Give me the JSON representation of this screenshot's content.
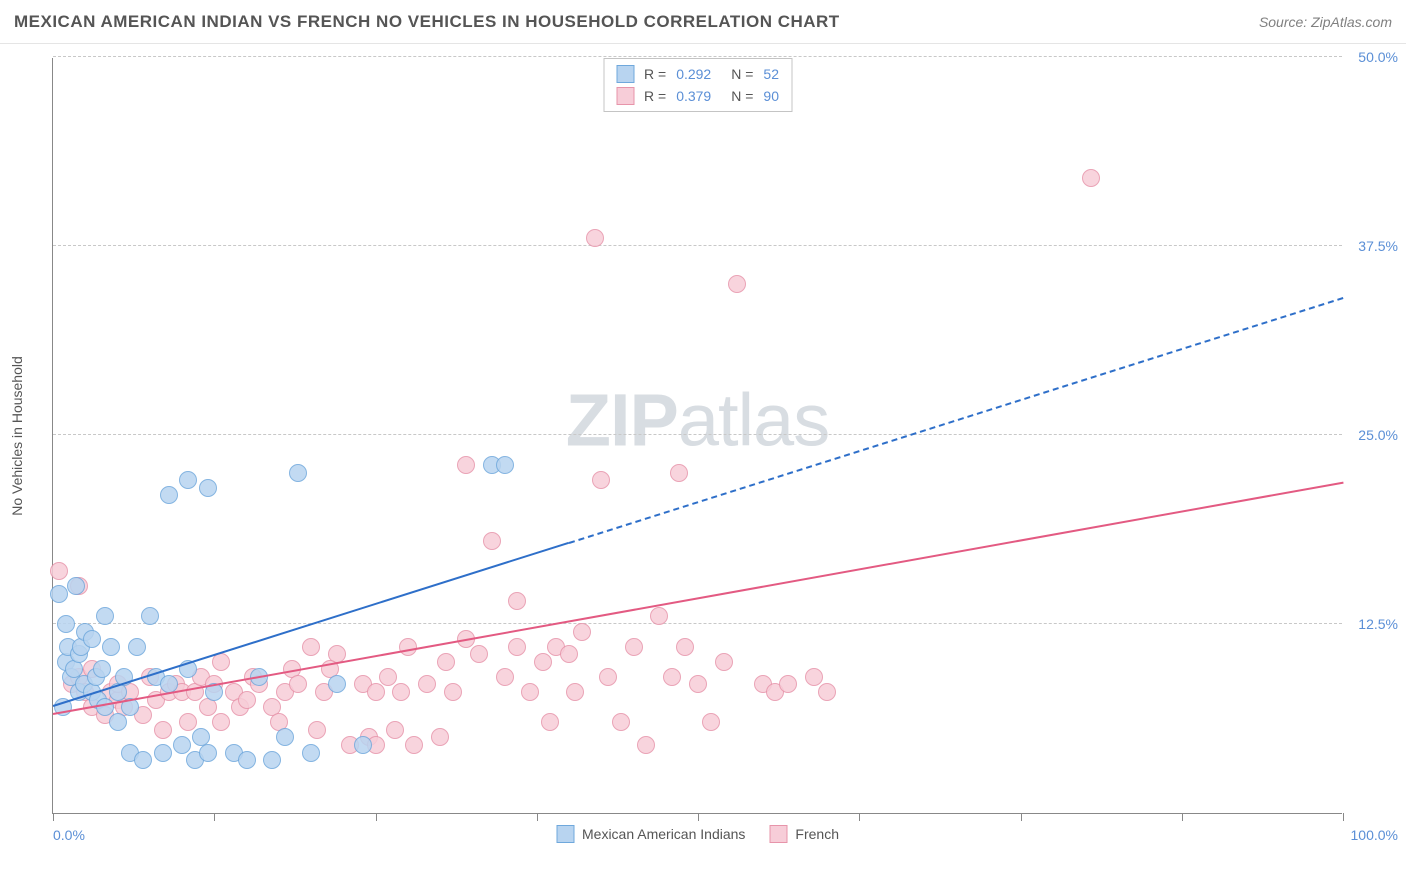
{
  "title": "MEXICAN AMERICAN INDIAN VS FRENCH NO VEHICLES IN HOUSEHOLD CORRELATION CHART",
  "source_prefix": "Source: ",
  "source_link": "ZipAtlas.com",
  "watermark_a": "ZIP",
  "watermark_b": "atlas",
  "y_axis_title": "No Vehicles in Household",
  "chart": {
    "type": "scatter",
    "xlim": [
      0,
      100
    ],
    "ylim": [
      0,
      50
    ],
    "x_ticks": [
      0,
      12.5,
      25,
      37.5,
      50,
      62.5,
      75,
      87.5,
      100
    ],
    "y_ticks": [
      12.5,
      25,
      37.5,
      50
    ],
    "x_label_min": "0.0%",
    "x_label_max": "100.0%",
    "y_tick_labels": [
      "12.5%",
      "25.0%",
      "37.5%",
      "50.0%"
    ],
    "grid_color": "#c8c8c8",
    "background_color": "#ffffff",
    "axis_color": "#888888",
    "tick_label_color": "#5b8fd6",
    "point_radius": 9,
    "series": [
      {
        "name": "Mexican American Indians",
        "fill": "#b8d4f0",
        "stroke": "#6fa8dc",
        "line_color": "#2e6fc9",
        "r_label": "R =",
        "r_value": "0.292",
        "n_label": "N =",
        "n_value": "52",
        "trend": {
          "x1": 0,
          "y1": 7.0,
          "x2": 40,
          "y2": 17.8,
          "dash_to_x": 100,
          "dash_to_y": 34.0
        },
        "points": [
          [
            0.5,
            14.5
          ],
          [
            0.8,
            7.0
          ],
          [
            1.0,
            12.5
          ],
          [
            1.0,
            10.0
          ],
          [
            1.2,
            11.0
          ],
          [
            1.4,
            9.0
          ],
          [
            1.6,
            9.5
          ],
          [
            1.8,
            15.0
          ],
          [
            2.0,
            8.0
          ],
          [
            2.0,
            10.5
          ],
          [
            2.2,
            11.0
          ],
          [
            2.4,
            8.5
          ],
          [
            2.5,
            12.0
          ],
          [
            3.0,
            8.0
          ],
          [
            3.0,
            11.5
          ],
          [
            3.3,
            9.0
          ],
          [
            3.5,
            7.5
          ],
          [
            3.8,
            9.5
          ],
          [
            4.0,
            13.0
          ],
          [
            4.0,
            7.0
          ],
          [
            4.5,
            11.0
          ],
          [
            5.0,
            6.0
          ],
          [
            5.0,
            8.0
          ],
          [
            5.5,
            9.0
          ],
          [
            6.0,
            7.0
          ],
          [
            6.0,
            4.0
          ],
          [
            6.5,
            11.0
          ],
          [
            7.0,
            3.5
          ],
          [
            7.5,
            13.0
          ],
          [
            8.0,
            9.0
          ],
          [
            8.5,
            4.0
          ],
          [
            9.0,
            21.0
          ],
          [
            9.0,
            8.5
          ],
          [
            10.0,
            4.5
          ],
          [
            10.5,
            9.5
          ],
          [
            10.5,
            22.0
          ],
          [
            11.0,
            3.5
          ],
          [
            11.5,
            5.0
          ],
          [
            12.0,
            21.5
          ],
          [
            12.0,
            4.0
          ],
          [
            12.5,
            8.0
          ],
          [
            14.0,
            4.0
          ],
          [
            15.0,
            3.5
          ],
          [
            16.0,
            9.0
          ],
          [
            17.0,
            3.5
          ],
          [
            18.0,
            5.0
          ],
          [
            19.0,
            22.5
          ],
          [
            20.0,
            4.0
          ],
          [
            22.0,
            8.5
          ],
          [
            24.0,
            4.5
          ],
          [
            34.0,
            23.0
          ],
          [
            35.0,
            23.0
          ]
        ]
      },
      {
        "name": "French",
        "fill": "#f7cdd8",
        "stroke": "#e794aa",
        "line_color": "#e35a82",
        "r_label": "R =",
        "r_value": "0.379",
        "n_label": "N =",
        "n_value": "90",
        "trend": {
          "x1": 0,
          "y1": 6.5,
          "x2": 100,
          "y2": 21.8
        },
        "points": [
          [
            0.5,
            16.0
          ],
          [
            1.5,
            8.5
          ],
          [
            2.0,
            9.0
          ],
          [
            2.0,
            15.0
          ],
          [
            2.5,
            8.0
          ],
          [
            3.0,
            9.5
          ],
          [
            3.0,
            7.0
          ],
          [
            4.0,
            6.5
          ],
          [
            4.5,
            8.0
          ],
          [
            5.0,
            7.5
          ],
          [
            5.0,
            8.5
          ],
          [
            5.5,
            7.0
          ],
          [
            6.0,
            8.0
          ],
          [
            7.0,
            6.5
          ],
          [
            7.5,
            9.0
          ],
          [
            8.0,
            7.5
          ],
          [
            8.5,
            5.5
          ],
          [
            9.0,
            8.0
          ],
          [
            9.5,
            8.5
          ],
          [
            10.0,
            8.0
          ],
          [
            10.5,
            6.0
          ],
          [
            11.0,
            8.0
          ],
          [
            11.5,
            9.0
          ],
          [
            12.0,
            7.0
          ],
          [
            12.5,
            8.5
          ],
          [
            13.0,
            6.0
          ],
          [
            13.0,
            10.0
          ],
          [
            14.0,
            8.0
          ],
          [
            14.5,
            7.0
          ],
          [
            15.0,
            7.5
          ],
          [
            15.5,
            9.0
          ],
          [
            16.0,
            8.5
          ],
          [
            17.0,
            7.0
          ],
          [
            17.5,
            6.0
          ],
          [
            18.0,
            8.0
          ],
          [
            18.5,
            9.5
          ],
          [
            19.0,
            8.5
          ],
          [
            20.0,
            11.0
          ],
          [
            20.5,
            5.5
          ],
          [
            21.0,
            8.0
          ],
          [
            22.0,
            10.5
          ],
          [
            23.0,
            4.5
          ],
          [
            24.0,
            8.5
          ],
          [
            24.5,
            5.0
          ],
          [
            25.0,
            8.0
          ],
          [
            25.0,
            4.5
          ],
          [
            26.0,
            9.0
          ],
          [
            26.5,
            5.5
          ],
          [
            27.0,
            8.0
          ],
          [
            27.5,
            11.0
          ],
          [
            28.0,
            4.5
          ],
          [
            29.0,
            8.5
          ],
          [
            30.0,
            5.0
          ],
          [
            30.5,
            10.0
          ],
          [
            31.0,
            8.0
          ],
          [
            32.0,
            23.0
          ],
          [
            33.0,
            10.5
          ],
          [
            34.0,
            18.0
          ],
          [
            35.0,
            9.0
          ],
          [
            36.0,
            11.0
          ],
          [
            36.0,
            14.0
          ],
          [
            37.0,
            8.0
          ],
          [
            38.0,
            10.0
          ],
          [
            38.5,
            6.0
          ],
          [
            39.0,
            11.0
          ],
          [
            40.0,
            10.5
          ],
          [
            40.5,
            8.0
          ],
          [
            41.0,
            12.0
          ],
          [
            42.0,
            38.0
          ],
          [
            42.5,
            22.0
          ],
          [
            43.0,
            9.0
          ],
          [
            44.0,
            6.0
          ],
          [
            45.0,
            11.0
          ],
          [
            46.0,
            4.5
          ],
          [
            47.0,
            13.0
          ],
          [
            48.0,
            9.0
          ],
          [
            48.5,
            22.5
          ],
          [
            49.0,
            11.0
          ],
          [
            50.0,
            8.5
          ],
          [
            51.0,
            6.0
          ],
          [
            52.0,
            10.0
          ],
          [
            53.0,
            35.0
          ],
          [
            55.0,
            8.5
          ],
          [
            56.0,
            8.0
          ],
          [
            57.0,
            8.5
          ],
          [
            59.0,
            9.0
          ],
          [
            60.0,
            8.0
          ],
          [
            80.5,
            42.0
          ],
          [
            32.0,
            11.5
          ],
          [
            21.5,
            9.5
          ]
        ]
      }
    ]
  },
  "legend_bottom": [
    {
      "label": "Mexican American Indians",
      "fill": "#b8d4f0",
      "stroke": "#6fa8dc"
    },
    {
      "label": "French",
      "fill": "#f7cdd8",
      "stroke": "#e794aa"
    }
  ]
}
